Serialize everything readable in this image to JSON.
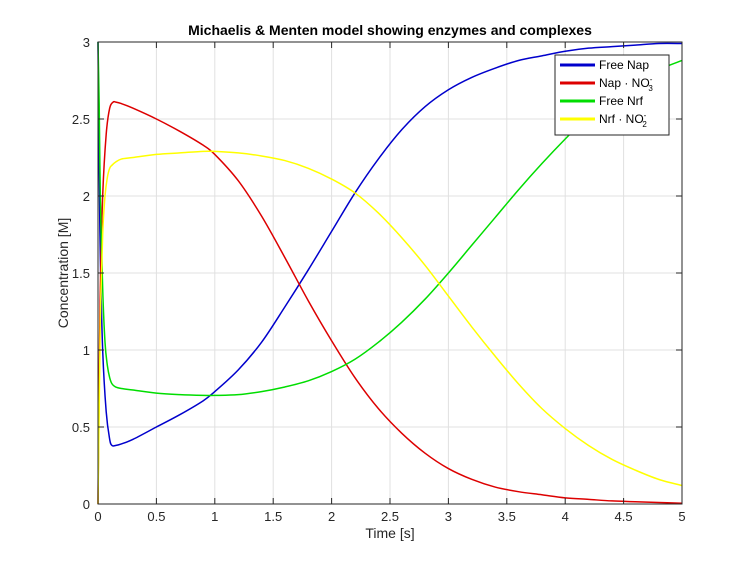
{
  "chart_data": {
    "type": "line",
    "title": "Michaelis & Menten model showing enzymes and complexes",
    "xlabel": "Time [s]",
    "ylabel": "Concentration [M]",
    "xlim": [
      0,
      5
    ],
    "ylim": [
      0,
      3
    ],
    "xticks": [
      0,
      0.5,
      1,
      1.5,
      2,
      2.5,
      3,
      3.5,
      4,
      4.5,
      5
    ],
    "xtick_labels": [
      "0",
      "0.5",
      "1",
      "1.5",
      "2",
      "2.5",
      "3",
      "3.5",
      "4",
      "4.5",
      "5"
    ],
    "yticks": [
      0,
      0.5,
      1,
      1.5,
      2,
      2.5,
      3
    ],
    "ytick_labels": [
      "0",
      "0.5",
      "1",
      "1.5",
      "2",
      "2.5",
      "3"
    ],
    "grid": true,
    "legend_position": "top-right",
    "series": [
      {
        "name": "Free Nap",
        "legend_main": "Free Nap",
        "color": "#0000cc",
        "x": [
          0,
          0.01,
          0.02,
          0.04,
          0.07,
          0.1,
          0.12,
          0.15,
          0.2,
          0.3,
          0.5,
          0.7,
          0.9,
          1.0,
          1.2,
          1.4,
          1.6,
          1.8,
          2.0,
          2.2,
          2.4,
          2.6,
          2.8,
          3.0,
          3.2,
          3.4,
          3.6,
          3.8,
          4.0,
          4.2,
          4.4,
          4.6,
          4.8,
          5.0
        ],
        "y": [
          3.0,
          2.2,
          1.6,
          1.0,
          0.6,
          0.42,
          0.38,
          0.38,
          0.39,
          0.42,
          0.5,
          0.58,
          0.67,
          0.73,
          0.87,
          1.05,
          1.28,
          1.52,
          1.77,
          2.02,
          2.24,
          2.43,
          2.58,
          2.69,
          2.77,
          2.83,
          2.88,
          2.91,
          2.94,
          2.96,
          2.97,
          2.98,
          2.99,
          2.99
        ]
      },
      {
        "name": "Nap · NO3-",
        "legend_main": "Nap · NO",
        "legend_sub": "3",
        "legend_sup": "-",
        "color": "#dd0000",
        "x": [
          0,
          0.01,
          0.02,
          0.04,
          0.07,
          0.1,
          0.13,
          0.15,
          0.2,
          0.3,
          0.5,
          0.7,
          0.9,
          1.0,
          1.2,
          1.4,
          1.6,
          1.8,
          2.0,
          2.2,
          2.4,
          2.6,
          2.8,
          3.0,
          3.2,
          3.4,
          3.6,
          3.8,
          4.0,
          4.2,
          4.4,
          4.6,
          4.8,
          5.0
        ],
        "y": [
          0,
          0.8,
          1.4,
          2.0,
          2.4,
          2.57,
          2.61,
          2.61,
          2.6,
          2.57,
          2.5,
          2.42,
          2.33,
          2.27,
          2.1,
          1.87,
          1.6,
          1.32,
          1.06,
          0.82,
          0.62,
          0.46,
          0.33,
          0.23,
          0.16,
          0.11,
          0.08,
          0.06,
          0.04,
          0.03,
          0.02,
          0.015,
          0.01,
          0.005
        ]
      },
      {
        "name": "Free Nrf",
        "legend_main": "Free Nrf",
        "color": "#00dd00",
        "x": [
          0,
          0.01,
          0.02,
          0.04,
          0.06,
          0.08,
          0.1,
          0.12,
          0.15,
          0.2,
          0.3,
          0.5,
          0.7,
          0.9,
          1.0,
          1.2,
          1.4,
          1.6,
          1.8,
          2.0,
          2.2,
          2.4,
          2.6,
          2.8,
          3.0,
          3.2,
          3.4,
          3.6,
          3.8,
          4.0,
          4.2,
          4.4,
          4.6,
          4.8,
          5.0
        ],
        "y": [
          3.0,
          2.6,
          2.0,
          1.4,
          1.05,
          0.9,
          0.82,
          0.78,
          0.76,
          0.75,
          0.74,
          0.72,
          0.71,
          0.705,
          0.705,
          0.71,
          0.73,
          0.76,
          0.8,
          0.86,
          0.94,
          1.05,
          1.18,
          1.33,
          1.5,
          1.68,
          1.86,
          2.04,
          2.21,
          2.37,
          2.52,
          2.64,
          2.74,
          2.82,
          2.88
        ]
      },
      {
        "name": "Nrf · NO2-",
        "legend_main": "Nrf · NO",
        "legend_sub": "2",
        "legend_sup": "-",
        "color": "#ffff00",
        "x": [
          0,
          0.01,
          0.02,
          0.04,
          0.06,
          0.08,
          0.1,
          0.12,
          0.15,
          0.2,
          0.3,
          0.5,
          0.7,
          0.9,
          1.0,
          1.2,
          1.4,
          1.6,
          1.8,
          2.0,
          2.2,
          2.4,
          2.6,
          2.8,
          3.0,
          3.2,
          3.4,
          3.6,
          3.8,
          4.0,
          4.2,
          4.4,
          4.6,
          4.8,
          5.0
        ],
        "y": [
          0,
          0.6,
          1.2,
          1.75,
          2.0,
          2.12,
          2.18,
          2.2,
          2.22,
          2.24,
          2.25,
          2.27,
          2.28,
          2.29,
          2.29,
          2.28,
          2.26,
          2.23,
          2.18,
          2.11,
          2.02,
          1.89,
          1.73,
          1.55,
          1.35,
          1.15,
          0.96,
          0.78,
          0.62,
          0.49,
          0.38,
          0.29,
          0.22,
          0.16,
          0.12
        ]
      }
    ]
  }
}
